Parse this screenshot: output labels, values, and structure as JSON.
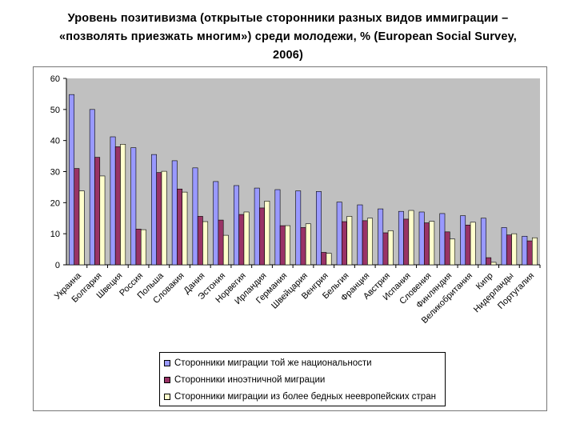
{
  "title_lines": [
    "Уровень позитивизма (открытые сторонники разных видов иммиграции –",
    "«позволять приезжать многим») среди молодежи, % (European Social Survey,",
    "2006)"
  ],
  "chart_data": {
    "type": "bar",
    "title": "Уровень позитивизма (открытые сторонники разных видов иммиграции – «позволять приезжать многим») среди молодежи, % (European Social Survey, 2006)",
    "xlabel": "",
    "ylabel": "",
    "ylim": [
      0,
      60
    ],
    "yticks": [
      0,
      10,
      20,
      30,
      40,
      50,
      60
    ],
    "grid": false,
    "legend_position": "bottom",
    "categories": [
      "Украина",
      "Болгария",
      "Швеция",
      "Россия",
      "Польша",
      "Словакия",
      "Дания",
      "Эстония",
      "Норвегия",
      "Ирландия",
      "Германия",
      "Швейцария",
      "Венгрия",
      "Бельгия",
      "Франция",
      "Австрия",
      "Испания",
      "Словения",
      "Финляндия",
      "Великобритания",
      "Кипр",
      "Нидерланды",
      "Португалия"
    ],
    "series": [
      {
        "name": "Сторонники миграции той же национальности",
        "color": "#9999ff",
        "values": [
          54.8,
          50.0,
          41.2,
          37.7,
          35.5,
          33.5,
          31.2,
          26.8,
          25.5,
          24.7,
          24.2,
          23.8,
          23.6,
          20.2,
          19.3,
          18.0,
          17.2,
          17.0,
          16.5,
          15.8,
          15.0,
          12.0,
          9.2
        ]
      },
      {
        "name": "Сторонники иноэтничной миграции",
        "color": "#993366",
        "values": [
          31.0,
          34.6,
          38.0,
          11.5,
          29.7,
          24.4,
          15.6,
          14.4,
          16.2,
          18.3,
          12.6,
          12.0,
          4.0,
          13.9,
          14.2,
          10.3,
          14.7,
          13.5,
          10.6,
          12.8,
          2.3,
          9.6,
          7.7
        ]
      },
      {
        "name": "Сторонники миграции из более бедных неевропейских стран",
        "color": "#ffffcc",
        "values": [
          23.8,
          28.6,
          38.8,
          11.3,
          30.1,
          23.4,
          13.9,
          9.5,
          17.0,
          20.5,
          12.6,
          13.2,
          3.7,
          15.6,
          15.0,
          11.0,
          17.5,
          14.0,
          8.3,
          13.7,
          0.8,
          10.0,
          8.7
        ]
      }
    ]
  }
}
